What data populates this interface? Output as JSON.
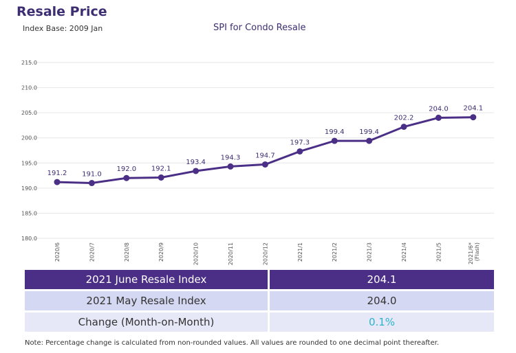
{
  "header": {
    "title": "Resale Price",
    "subtitle": "Index Base: 2009 Jan"
  },
  "chart_data": {
    "type": "line",
    "title": "SPI for Condo Resale",
    "categories": [
      "2020/6",
      "2020/7",
      "2020/8",
      "2020/9",
      "2020/10",
      "2020/11",
      "2020/12",
      "2021/1",
      "2021/2",
      "2021/3",
      "2021/4",
      "2021/5",
      "2021/6*\n(Flash)"
    ],
    "values": [
      191.2,
      191.0,
      192.0,
      192.1,
      193.4,
      194.3,
      194.7,
      197.3,
      199.4,
      199.4,
      202.2,
      204.0,
      204.1
    ],
    "ylim": [
      180,
      215
    ],
    "yticks": [
      "180.0",
      "185.0",
      "190.0",
      "195.0",
      "200.0",
      "205.0",
      "210.0",
      "215.0"
    ],
    "grid": true,
    "color": "#4b2f86"
  },
  "table": {
    "rows": [
      {
        "label": "2021 June Resale Index",
        "value": "204.1"
      },
      {
        "label": "2021 May Resale Index",
        "value": "204.0"
      },
      {
        "label": "Change (Month-on-Month)",
        "value": "0.1%",
        "value_color": "#2bb3c9"
      }
    ]
  },
  "note": "Note: Percentage change is calculated from non-rounded values.  All values are rounded to one decimal point thereafter."
}
